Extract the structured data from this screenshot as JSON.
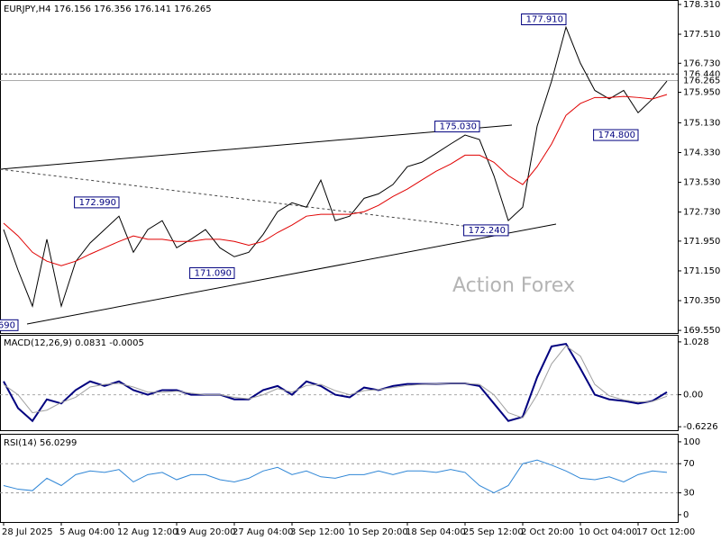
{
  "chart_data": [
    {
      "type": "line",
      "title": "EURJPY,H4  176.156 176.356 176.141 176.265",
      "watermark": "Action Forex",
      "categories": [
        "28 Jul 2025",
        null,
        null,
        null,
        "5 Aug 04:00",
        null,
        null,
        null,
        "12 Aug 12:00",
        null,
        null,
        null,
        "19 Aug 20:00",
        null,
        null,
        null,
        "27 Aug 04:00",
        null,
        null,
        null,
        "3 Sep 12:00",
        null,
        null,
        null,
        "10 Sep 20:00",
        null,
        null,
        null,
        "18 Sep 04:00",
        null,
        null,
        null,
        "25 Sep 12:00",
        null,
        null,
        null,
        "2 Oct 20:00",
        null,
        null,
        null,
        "10 Oct 04:00",
        null,
        null,
        null,
        "17 Oct 12:00",
        null,
        null
      ],
      "series": [
        {
          "color": "#000000",
          "values": [
            172.26,
            171.17,
            170.2,
            172.0,
            170.2,
            171.4,
            171.9,
            172.26,
            172.62,
            171.65,
            172.26,
            172.5,
            171.77,
            172.0,
            172.26,
            171.77,
            171.53,
            171.65,
            172.13,
            172.74,
            172.98,
            172.86,
            173.59,
            172.5,
            172.62,
            173.1,
            173.22,
            173.47,
            173.95,
            174.07,
            174.31,
            174.56,
            174.8,
            174.68,
            173.71,
            172.5,
            172.86,
            175.04,
            176.25,
            177.7,
            176.73,
            176.0,
            175.77,
            176.0,
            175.4,
            175.77,
            176.25
          ]
        },
        {
          "color": "#e00000",
          "values": [
            172.43,
            172.09,
            171.65,
            171.41,
            171.29,
            171.41,
            171.6,
            171.77,
            171.94,
            172.09,
            172.0,
            172.0,
            171.94,
            171.94,
            172.0,
            172.0,
            171.94,
            171.84,
            171.94,
            172.18,
            172.38,
            172.62,
            172.67,
            172.67,
            172.67,
            172.74,
            172.91,
            173.15,
            173.35,
            173.59,
            173.83,
            174.02,
            174.26,
            174.26,
            174.07,
            173.71,
            173.47,
            173.95,
            174.56,
            175.33,
            175.65,
            175.81,
            175.81,
            175.84,
            175.81,
            175.77,
            175.89
          ]
        }
      ],
      "ylim": [
        169.48,
        178.43
      ],
      "yticks": [
        {
          "value": 178.31,
          "label": "178.310"
        },
        {
          "value": 177.51,
          "label": "177.510"
        },
        {
          "value": 176.73,
          "label": "176.730"
        },
        {
          "value": 175.95,
          "label": "175.950"
        },
        {
          "value": 175.13,
          "label": "175.130"
        },
        {
          "value": 174.33,
          "label": "174.330"
        },
        {
          "value": 173.53,
          "label": "173.530"
        },
        {
          "value": 172.73,
          "label": "172.730"
        },
        {
          "value": 171.95,
          "label": "171.950"
        },
        {
          "value": 171.15,
          "label": "171.150"
        },
        {
          "value": 170.35,
          "label": "170.350"
        },
        {
          "value": 169.55,
          "label": "169.550"
        }
      ],
      "price_lines": [
        {
          "value": 176.44,
          "label": "176.440",
          "style": "dotted"
        },
        {
          "value": 176.265,
          "label": "176.265",
          "style": "solid"
        }
      ],
      "annotations": [
        {
          "index": 39,
          "value": 177.91,
          "label": "177.910"
        },
        {
          "index": 33,
          "value": 175.03,
          "label": "175.030"
        },
        {
          "index": 44,
          "value": 174.8,
          "label": "174.800"
        },
        {
          "index": 8,
          "value": 172.99,
          "label": "172.990"
        },
        {
          "index": 35,
          "value": 172.24,
          "label": "172.240"
        },
        {
          "index": 16,
          "value": 171.09,
          "label": "171.090"
        },
        {
          "index": 1,
          "value": 169.69,
          "label": "690"
        }
      ]
    },
    {
      "type": "line",
      "title": "MACD(12,26,9) 0.0831 -0.0005",
      "series": [
        {
          "color": "#00007f",
          "values": [
            0.26,
            -0.26,
            -0.51,
            -0.09,
            -0.17,
            0.09,
            0.26,
            0.17,
            0.26,
            0.09,
            0,
            0.09,
            0.09,
            0,
            0,
            0,
            -0.09,
            -0.09,
            0.09,
            0.17,
            0,
            0.26,
            0.17,
            0,
            -0.05,
            0.14,
            0.09,
            0.17,
            0.21,
            0.21,
            0.21,
            0.22,
            0.22,
            0.17,
            -0.17,
            -0.51,
            -0.43,
            0.34,
            0.94,
            0.99,
            0.51,
            0,
            -0.09,
            -0.12,
            -0.17,
            -0.12,
            0.05
          ]
        },
        {
          "color": "#a0a0a0",
          "values": [
            0.2,
            0.0,
            -0.35,
            -0.3,
            -0.15,
            -0.05,
            0.15,
            0.2,
            0.22,
            0.15,
            0.05,
            0.05,
            0.07,
            0.03,
            0.0,
            0.0,
            -0.05,
            -0.08,
            0.0,
            0.12,
            0.05,
            0.18,
            0.2,
            0.08,
            0.0,
            0.08,
            0.1,
            0.14,
            0.18,
            0.2,
            0.21,
            0.22,
            0.22,
            0.2,
            0.0,
            -0.35,
            -0.45,
            0.0,
            0.6,
            0.95,
            0.75,
            0.2,
            -0.02,
            -0.1,
            -0.14,
            -0.13,
            -0.03
          ]
        }
      ],
      "ylim": [
        -0.69,
        1.166
      ],
      "yticks": [
        {
          "value": 1.028,
          "label": "1.028"
        },
        {
          "value": 0,
          "label": "0.00"
        },
        -0.6226
      ]
    },
    {
      "type": "line",
      "title": "RSI(14) 56.0299",
      "series": [
        {
          "color": "#2f86d6",
          "values": [
            40,
            35,
            33,
            50,
            40,
            55,
            60,
            58,
            62,
            45,
            55,
            58,
            48,
            55,
            55,
            48,
            45,
            50,
            60,
            65,
            55,
            60,
            52,
            50,
            55,
            55,
            60,
            55,
            60,
            60,
            58,
            62,
            58,
            40,
            30,
            40,
            70,
            75,
            68,
            60,
            50,
            48,
            52,
            45,
            55,
            60,
            58
          ]
        }
      ],
      "ylim": [
        -10,
        111
      ],
      "yticks": [
        100,
        70,
        30,
        0
      ],
      "levels": [
        70,
        30
      ]
    }
  ]
}
